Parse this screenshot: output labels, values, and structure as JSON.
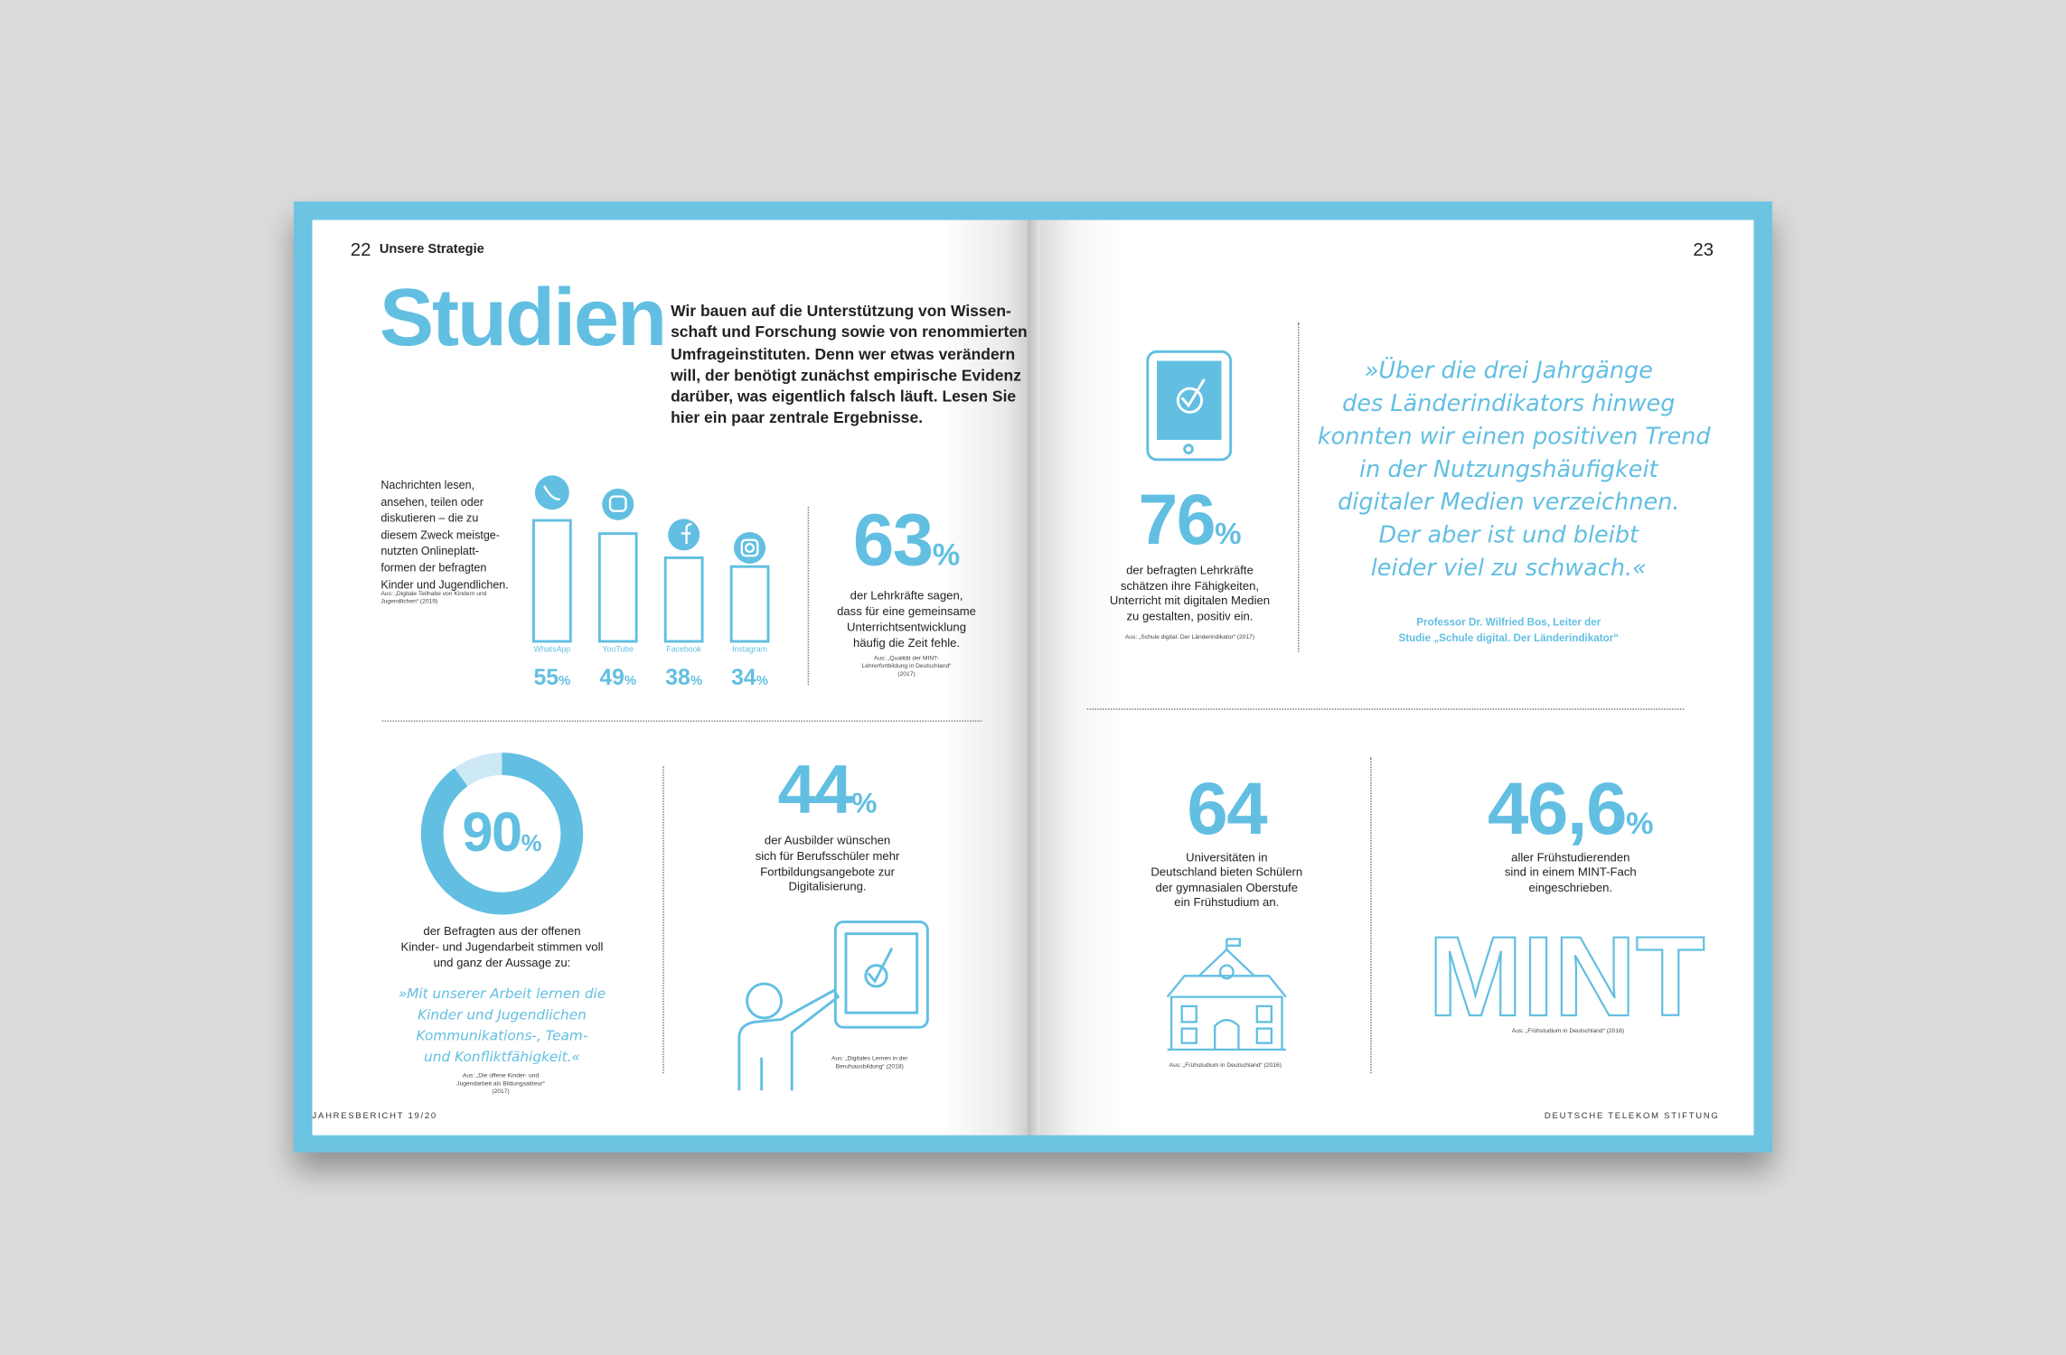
{
  "left_page": {
    "page_number": "22",
    "section": "Unsere Strategie",
    "title": "Studien",
    "intro_lines": [
      "Wir bauen auf die Unterstützung von Wissen-",
      "schaft und Forschung sowie von renommierten",
      "Umfrageinstituten. Denn wer etwas verändern",
      "will, der benötigt zunächst empirische Evidenz",
      "darüber, was eigentlich falsch läuft. Lesen Sie",
      "hier ein paar zentrale Ergebnisse."
    ],
    "platforms": {
      "description_lines": [
        "Nachrichten lesen,",
        "ansehen, teilen oder",
        "diskutieren – die zu",
        "diesem Zweck meistge-",
        "nutzten Onlineplatt-",
        "formen der befragten",
        "Kinder und Jugendlichen."
      ],
      "source": "Aus: „Digitale Teilhabe von Kindern und Jugendlichen“ (2019)",
      "categories": [
        "WhatsApp",
        "YouTube",
        "Facebook",
        "Instagram"
      ],
      "values": [
        55,
        49,
        38,
        34
      ],
      "unit": "%"
    },
    "teachers_time": {
      "number": 63,
      "unit": "%",
      "lines": [
        "der Lehrkräfte sagen,",
        "dass für eine gemeinsame",
        "Unterrichtsentwicklung",
        "häufig die Zeit fehle."
      ],
      "source": "Aus: „Qualität der MINT-Lehrerfortbildung in Deutschland“ (2017)"
    },
    "youth_work": {
      "value": 90,
      "unit": "%",
      "lines": [
        "der Befragten aus der offenen",
        "Kinder- und Jugendarbeit stimmen voll",
        "und ganz der Aussage zu:"
      ],
      "quote_lines": [
        "»Mit unserer Arbeit lernen die",
        "Kinder und Jugendlichen",
        "Kommunikations-, Team-",
        "und Konfliktfähigkeit.«"
      ],
      "source": "Aus: „Die offene Kinder- und Jugendarbeit als Bildungsakteur“ (2017)"
    },
    "trainers": {
      "number": 44,
      "unit": "%",
      "lines": [
        "der Ausbilder wünschen",
        "sich für Berufsschüler mehr",
        "Fortbildungsangebote zur",
        "Digitalisierung."
      ],
      "source": "Aus: „Digitales Lernen in der Berufsausbildung“ (2018)"
    },
    "footer": "JAHRESBERICHT 19/20"
  },
  "right_page": {
    "page_number": "23",
    "teachers_skills": {
      "number": 76,
      "unit": "%",
      "lines": [
        "der befragten Lehrkräfte",
        "schätzen ihre Fähigkeiten,",
        "Unterricht mit digitalen Medien",
        "zu gestalten, positiv ein."
      ],
      "source": "Aus: „Schule digital. Der Länderindikator“ (2017)"
    },
    "quote_lines": [
      "»Über die drei Jahrgänge",
      "des Länderindikators hinweg",
      "konnten wir einen positiven Trend",
      "in der Nutzungshäufigkeit",
      "digitaler Medien verzeichnen.",
      "Der aber ist und bleibt",
      "leider viel zu schwach.«"
    ],
    "attribution_lines": [
      "Professor Dr. Wilfried Bos, Leiter der",
      "Studie „Schule digital. Der Länderindikator“"
    ],
    "universities": {
      "number": 64,
      "lines": [
        "Universitäten in",
        "Deutschland bieten Schülern",
        "der gymnasialen Oberstufe",
        "ein Frühstudium an."
      ],
      "source": "Aus: „Frühstudium in Deutschland“ (2016)"
    },
    "early_students": {
      "number": "46,6",
      "unit": "%",
      "lines": [
        "aller Frühstudierenden",
        "sind in einem MINT-Fach",
        "eingeschrieben."
      ],
      "logo_text": "MINT",
      "source": "Aus: „Frühstudium in Deutschland“ (2016)"
    },
    "footer": "DEUTSCHE TELEKOM STIFTUNG"
  }
}
